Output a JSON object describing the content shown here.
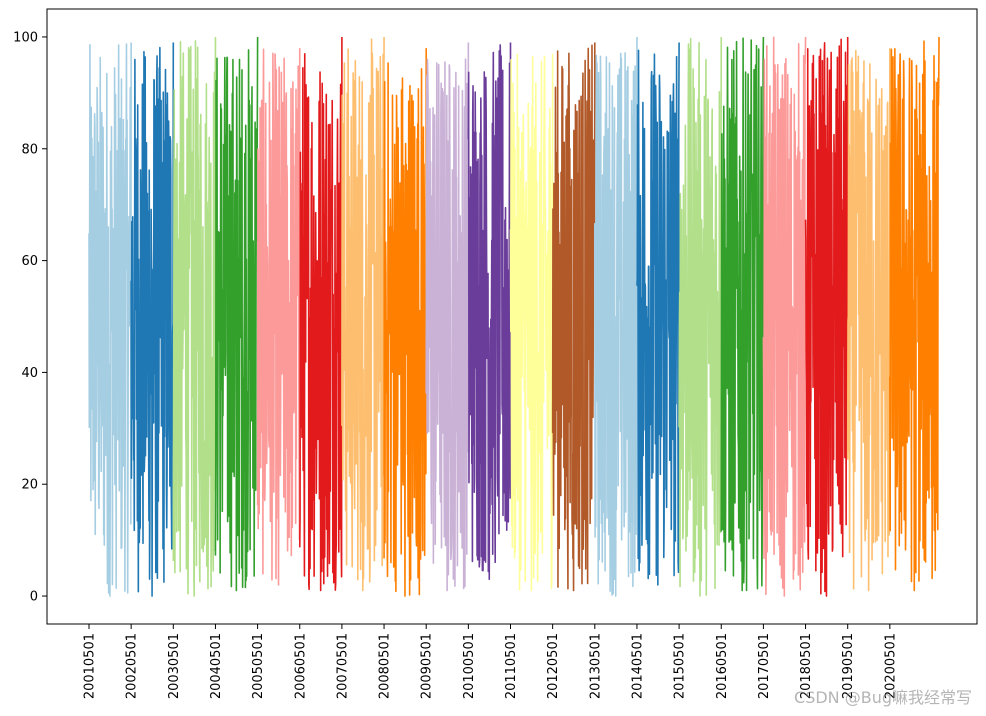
{
  "chart_data": {
    "type": "line",
    "title": "",
    "xlabel": "",
    "ylabel": "",
    "ylim": [
      -5,
      105
    ],
    "y_ticks": [
      0,
      20,
      40,
      60,
      80,
      100
    ],
    "x_tick_labels": [
      "20010501",
      "20020501",
      "20030501",
      "20040501",
      "20050501",
      "20060501",
      "20070501",
      "20080501",
      "20090501",
      "20100501",
      "20110501",
      "20120501",
      "20130501",
      "20140501",
      "20150501",
      "20160501",
      "20170501",
      "20180501",
      "20190501",
      "20200501"
    ],
    "x_tick_rotation": 90,
    "grid": false,
    "legend": "none",
    "series": [
      {
        "start": "20010501",
        "end": "20020501",
        "color": "#a6cee3",
        "ymin": 0,
        "ymax": 99
      },
      {
        "start": "20020501",
        "end": "20030501",
        "color": "#1f78b4",
        "ymin": 0,
        "ymax": 99
      },
      {
        "start": "20030501",
        "end": "20040501",
        "color": "#b2df8a",
        "ymin": 0,
        "ymax": 100
      },
      {
        "start": "20040501",
        "end": "20050501",
        "color": "#33a02c",
        "ymin": 1,
        "ymax": 100
      },
      {
        "start": "20050501",
        "end": "20060501",
        "color": "#fb9a99",
        "ymin": 2,
        "ymax": 98
      },
      {
        "start": "20060501",
        "end": "20070501",
        "color": "#e31a1c",
        "ymin": 1,
        "ymax": 100
      },
      {
        "start": "20070501",
        "end": "20080501",
        "color": "#fdbf6f",
        "ymin": 1,
        "ymax": 100
      },
      {
        "start": "20080501",
        "end": "20090501",
        "color": "#ff7f00",
        "ymin": 0,
        "ymax": 98
      },
      {
        "start": "20090501",
        "end": "20100501",
        "color": "#cab2d6",
        "ymin": 1,
        "ymax": 99
      },
      {
        "start": "20100501",
        "end": "20110501",
        "color": "#6a3d9a",
        "ymin": 3,
        "ymax": 99
      },
      {
        "start": "20110501",
        "end": "20120501",
        "color": "#ffff99",
        "ymin": 1,
        "ymax": 97
      },
      {
        "start": "20120501",
        "end": "20130501",
        "color": "#b15928",
        "ymin": 1,
        "ymax": 99
      },
      {
        "start": "20130501",
        "end": "20140501",
        "color": "#a6cee3",
        "ymin": 0,
        "ymax": 100
      },
      {
        "start": "20140501",
        "end": "20150501",
        "color": "#1f78b4",
        "ymin": 2,
        "ymax": 99
      },
      {
        "start": "20150501",
        "end": "20160501",
        "color": "#b2df8a",
        "ymin": 0,
        "ymax": 100
      },
      {
        "start": "20160501",
        "end": "20170501",
        "color": "#33a02c",
        "ymin": 1,
        "ymax": 100
      },
      {
        "start": "20170501",
        "end": "20180501",
        "color": "#fb9a99",
        "ymin": 0,
        "ymax": 100
      },
      {
        "start": "20180501",
        "end": "20190501",
        "color": "#e31a1c",
        "ymin": 0,
        "ymax": 100
      },
      {
        "start": "20190501",
        "end": "20200501",
        "color": "#fdbf6f",
        "ymin": 1,
        "ymax": 98
      },
      {
        "start": "20200501",
        "end": "20210701",
        "color": "#ff7f00",
        "ymin": 1,
        "ymax": 100
      }
    ]
  },
  "watermark": "CSDN @Bug嘛我经常写"
}
